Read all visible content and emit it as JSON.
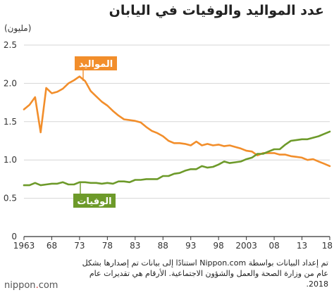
{
  "title": "عدد المواليد والوفيات في اليابان",
  "source_note": "تم إعداد البيانات بواسطة Nippon.com استنادًا إلى بيانات تم إصدارها بشكل عام من وزارة الصحة والعمل والشؤون الاجتماعية. الأرقام هي تقديرات عام 2018.",
  "logo": {
    "prefix": "nippon",
    "suffix": "com"
  },
  "colors": {
    "births": "#f28e2b",
    "deaths": "#6d9a2a",
    "grid": "#d6d6d6",
    "axis": "#333333"
  },
  "chart_data": {
    "type": "line",
    "title": "عدد المواليد والوفيات في اليابان",
    "ylabel": "(مليون)",
    "xlim": [
      1963,
      2018
    ],
    "ylim": [
      0,
      2.5
    ],
    "yticks": [
      0,
      0.5,
      1.0,
      1.5,
      2.0,
      2.5
    ],
    "ytick_labels": [
      "0",
      "0.5",
      "1.0",
      "1.5",
      "2.0",
      "2.5"
    ],
    "xticks": [
      1963,
      1968,
      1973,
      1978,
      1983,
      1988,
      1993,
      1998,
      2003,
      2008,
      2013,
      2018
    ],
    "xtick_labels": [
      "1963",
      "68",
      "73",
      "78",
      "83",
      "88",
      "93",
      "98",
      "2003",
      "08",
      "13",
      "18"
    ],
    "grid": true,
    "series": [
      {
        "name": "المواليد",
        "color": "#f28e2b",
        "x": [
          1963,
          1964,
          1965,
          1966,
          1967,
          1968,
          1969,
          1970,
          1971,
          1972,
          1973,
          1974,
          1975,
          1976,
          1977,
          1978,
          1979,
          1980,
          1981,
          1982,
          1983,
          1984,
          1985,
          1986,
          1987,
          1988,
          1989,
          1990,
          1991,
          1992,
          1993,
          1994,
          1995,
          1996,
          1997,
          1998,
          1999,
          2000,
          2001,
          2002,
          2003,
          2004,
          2005,
          2006,
          2007,
          2008,
          2009,
          2010,
          2011,
          2012,
          2013,
          2014,
          2015,
          2016,
          2017,
          2018
        ],
        "values": [
          1.66,
          1.72,
          1.82,
          1.36,
          1.94,
          1.87,
          1.89,
          1.93,
          2.0,
          2.04,
          2.09,
          2.03,
          1.9,
          1.83,
          1.76,
          1.71,
          1.64,
          1.58,
          1.53,
          1.52,
          1.51,
          1.49,
          1.43,
          1.38,
          1.35,
          1.31,
          1.25,
          1.22,
          1.22,
          1.21,
          1.19,
          1.24,
          1.19,
          1.21,
          1.19,
          1.2,
          1.18,
          1.19,
          1.17,
          1.15,
          1.12,
          1.11,
          1.06,
          1.09,
          1.09,
          1.09,
          1.07,
          1.07,
          1.05,
          1.04,
          1.03,
          1.0,
          1.01,
          0.98,
          0.95,
          0.92
        ]
      },
      {
        "name": "الوفيات",
        "color": "#6d9a2a",
        "x": [
          1963,
          1964,
          1965,
          1966,
          1967,
          1968,
          1969,
          1970,
          1971,
          1972,
          1973,
          1974,
          1975,
          1976,
          1977,
          1978,
          1979,
          1980,
          1981,
          1982,
          1983,
          1984,
          1985,
          1986,
          1987,
          1988,
          1989,
          1990,
          1991,
          1992,
          1993,
          1994,
          1995,
          1996,
          1997,
          1998,
          1999,
          2000,
          2001,
          2002,
          2003,
          2004,
          2005,
          2006,
          2007,
          2008,
          2009,
          2010,
          2011,
          2012,
          2013,
          2014,
          2015,
          2016,
          2017,
          2018
        ],
        "values": [
          0.67,
          0.67,
          0.7,
          0.67,
          0.68,
          0.69,
          0.69,
          0.71,
          0.68,
          0.68,
          0.71,
          0.71,
          0.7,
          0.7,
          0.69,
          0.7,
          0.69,
          0.72,
          0.72,
          0.71,
          0.74,
          0.74,
          0.75,
          0.75,
          0.75,
          0.79,
          0.79,
          0.82,
          0.83,
          0.86,
          0.88,
          0.88,
          0.92,
          0.9,
          0.91,
          0.94,
          0.98,
          0.96,
          0.97,
          0.98,
          1.01,
          1.03,
          1.08,
          1.08,
          1.11,
          1.14,
          1.14,
          1.2,
          1.25,
          1.26,
          1.27,
          1.27,
          1.29,
          1.31,
          1.34,
          1.37
        ]
      }
    ],
    "annotations": [
      {
        "text": "المواليد",
        "series": 0,
        "style": "orange-box"
      },
      {
        "text": "الوفيات",
        "series": 1,
        "style": "green-box"
      }
    ]
  }
}
